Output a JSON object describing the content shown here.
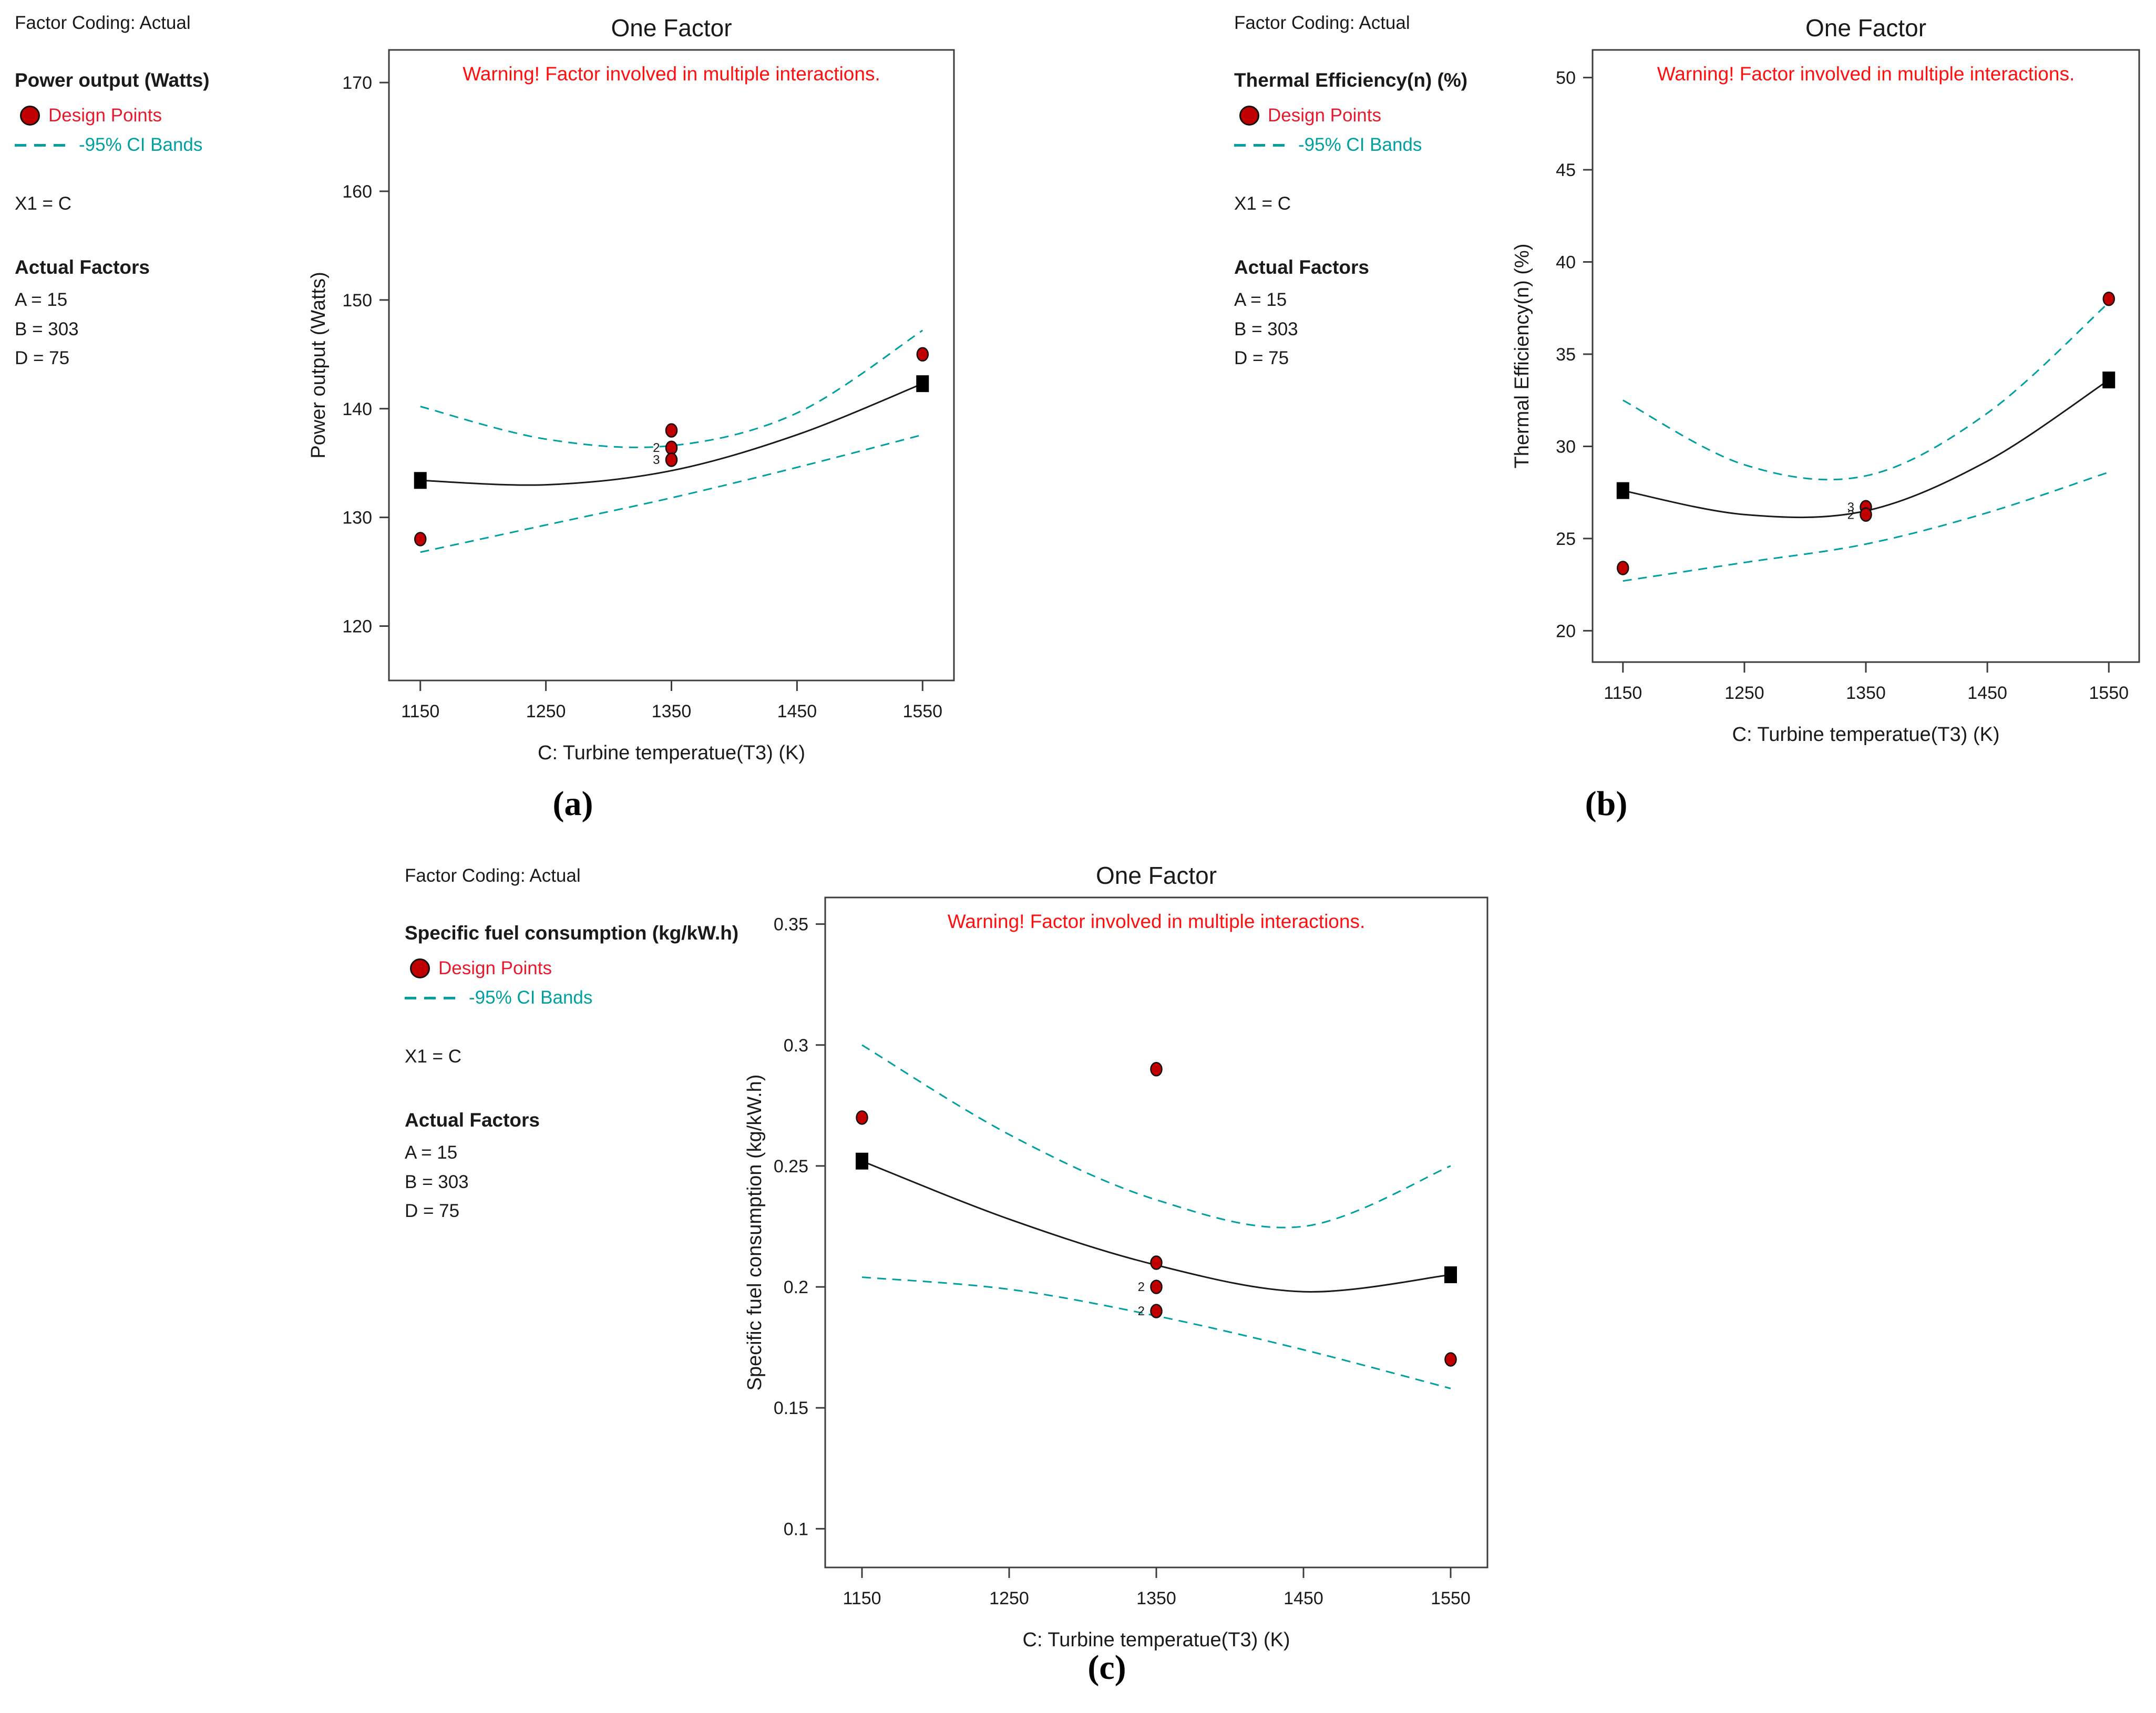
{
  "colors": {
    "design_point": "#c00000",
    "design_point_text": "#e8192c",
    "ci_band": "#00a0a0",
    "warning": "#ff0f0f",
    "axis": "#3d3d3d",
    "text": "#1a1a1a"
  },
  "panels": [
    {
      "panel_label": "(a)",
      "factor_coding": "Factor Coding: Actual",
      "legend": {
        "response_title": "Power output (Watts)",
        "design_points_label": "Design Points",
        "ci_bands_label": "-95% CI Bands",
        "x1": "X1 = C",
        "actual_factors_title": "Actual Factors",
        "factors": [
          "A = 15",
          "B = 303",
          "D = 75"
        ]
      }
    },
    {
      "panel_label": "(b)",
      "factor_coding": "Factor Coding: Actual",
      "legend": {
        "response_title": "Thermal Efficiency(n) (%)",
        "design_points_label": "Design Points",
        "ci_bands_label": "-95% CI Bands",
        "x1": "X1 = C",
        "actual_factors_title": "Actual Factors",
        "factors": [
          "A = 15",
          "B = 303",
          "D = 75"
        ]
      }
    },
    {
      "panel_label": "(c)",
      "factor_coding": "Factor Coding: Actual",
      "legend": {
        "response_title": "Specific fuel consumption (kg/kW.h)",
        "design_points_label": "Design Points",
        "ci_bands_label": "-95% CI Bands",
        "x1": "X1 = C",
        "actual_factors_title": "Actual Factors",
        "factors": [
          "A = 15",
          "B = 303",
          "D = 75"
        ]
      }
    }
  ],
  "chart_data": [
    {
      "type": "line",
      "title": "One Factor",
      "warning": "Warning! Factor involved in multiple interactions.",
      "xlabel": "C: Turbine temperatue(T3) (K)",
      "ylabel": "Power output (Watts)",
      "xlim": [
        1125,
        1575
      ],
      "ylim": [
        115,
        173
      ],
      "xticks": [
        1150,
        1250,
        1350,
        1450,
        1550
      ],
      "yticks": [
        120,
        130,
        140,
        150,
        160,
        170
      ],
      "grid": false,
      "legend_position": "outside-left",
      "series": [
        {
          "name": "prediction",
          "style": "solid",
          "x": [
            1150,
            1250,
            1350,
            1450,
            1550
          ],
          "y": [
            133.4,
            133.0,
            134.3,
            137.6,
            142.3
          ]
        },
        {
          "name": "95% CI upper",
          "style": "dashed",
          "x": [
            1150,
            1250,
            1350,
            1450,
            1550
          ],
          "y": [
            140.2,
            137.2,
            136.6,
            139.6,
            147.2
          ]
        },
        {
          "name": "95% CI lower",
          "style": "dashed",
          "x": [
            1150,
            1250,
            1350,
            1450,
            1550
          ],
          "y": [
            126.8,
            129.3,
            131.8,
            134.6,
            137.6
          ]
        }
      ],
      "design_points": [
        {
          "x": 1150,
          "y": 128.0
        },
        {
          "x": 1350,
          "y": 138.0
        },
        {
          "x": 1350,
          "y": 136.4,
          "label": "2"
        },
        {
          "x": 1350,
          "y": 135.3,
          "label": "3"
        },
        {
          "x": 1550,
          "y": 145.0
        }
      ],
      "mean_points": [
        {
          "x": 1150,
          "y": 133.4
        },
        {
          "x": 1550,
          "y": 142.3
        }
      ]
    },
    {
      "type": "line",
      "title": "One Factor",
      "warning": "Warning! Factor involved in multiple interactions.",
      "xlabel": "C: Turbine temperatue(T3) (K)",
      "ylabel": "Thermal Efficiency(n) (%)",
      "xlim": [
        1125,
        1575
      ],
      "ylim": [
        18.3,
        51.5
      ],
      "xticks": [
        1150,
        1250,
        1350,
        1450,
        1550
      ],
      "yticks": [
        20,
        25,
        30,
        35,
        40,
        45,
        50
      ],
      "grid": false,
      "legend_position": "outside-left",
      "series": [
        {
          "name": "prediction",
          "style": "solid",
          "x": [
            1150,
            1250,
            1350,
            1450,
            1550
          ],
          "y": [
            27.6,
            26.3,
            26.5,
            29.2,
            33.6
          ]
        },
        {
          "name": "95% CI upper",
          "style": "dashed",
          "x": [
            1150,
            1250,
            1350,
            1450,
            1550
          ],
          "y": [
            32.5,
            29.0,
            28.4,
            31.8,
            37.8
          ]
        },
        {
          "name": "95% CI lower",
          "style": "dashed",
          "x": [
            1150,
            1250,
            1350,
            1450,
            1550
          ],
          "y": [
            22.7,
            23.7,
            24.7,
            26.4,
            28.6
          ]
        }
      ],
      "design_points": [
        {
          "x": 1150,
          "y": 23.4
        },
        {
          "x": 1350,
          "y": 26.7,
          "label": "3"
        },
        {
          "x": 1350,
          "y": 26.3,
          "label": "2"
        },
        {
          "x": 1550,
          "y": 38.0
        }
      ],
      "mean_points": [
        {
          "x": 1150,
          "y": 27.6
        },
        {
          "x": 1550,
          "y": 33.6
        }
      ]
    },
    {
      "type": "line",
      "title": "One Factor",
      "warning": "Warning! Factor involved in multiple interactions.",
      "xlabel": "C: Turbine temperatue(T3) (K)",
      "ylabel": "Specific fuel consumption (kg/kW.h)",
      "xlim": [
        1125,
        1575
      ],
      "ylim": [
        0.084,
        0.361
      ],
      "xticks": [
        1150,
        1250,
        1350,
        1450,
        1550
      ],
      "yticks": [
        0.1,
        0.15,
        0.2,
        0.25,
        0.3,
        0.35
      ],
      "grid": false,
      "legend_position": "outside-left",
      "series": [
        {
          "name": "prediction",
          "style": "solid",
          "x": [
            1150,
            1250,
            1350,
            1450,
            1550
          ],
          "y": [
            0.252,
            0.228,
            0.209,
            0.198,
            0.205
          ]
        },
        {
          "name": "95% CI upper",
          "style": "dashed",
          "x": [
            1150,
            1250,
            1350,
            1450,
            1550
          ],
          "y": [
            0.3,
            0.263,
            0.236,
            0.225,
            0.25
          ]
        },
        {
          "name": "95% CI lower",
          "style": "dashed",
          "x": [
            1150,
            1250,
            1350,
            1450,
            1550
          ],
          "y": [
            0.204,
            0.199,
            0.188,
            0.174,
            0.158
          ]
        }
      ],
      "design_points": [
        {
          "x": 1150,
          "y": 0.27
        },
        {
          "x": 1350,
          "y": 0.29
        },
        {
          "x": 1350,
          "y": 0.21
        },
        {
          "x": 1350,
          "y": 0.2,
          "label": "2"
        },
        {
          "x": 1350,
          "y": 0.19,
          "label": "2"
        },
        {
          "x": 1550,
          "y": 0.17
        }
      ],
      "mean_points": [
        {
          "x": 1150,
          "y": 0.252
        },
        {
          "x": 1550,
          "y": 0.205
        }
      ]
    }
  ]
}
